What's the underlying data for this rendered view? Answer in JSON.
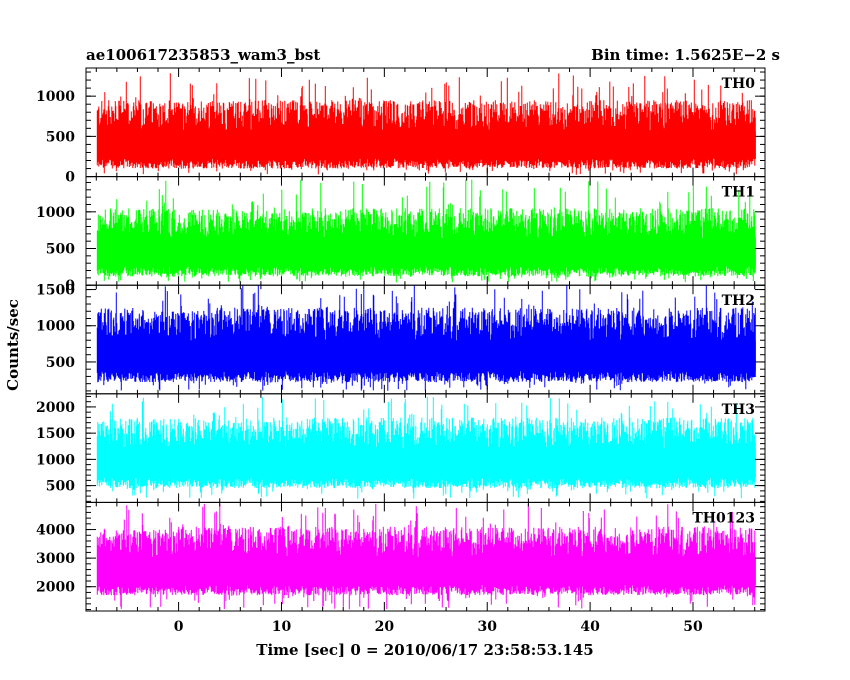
{
  "header": {
    "title": "ae100617235853_wam3_bst",
    "bin_time": "Bin time: 1.5625E−2 s"
  },
  "chart_data": {
    "type": "line",
    "xlabel": "Time [sec] 0 = 2010/06/17 23:58:53.145",
    "ylabel": "Counts/sec",
    "xlim": [
      -9,
      57
    ],
    "data_x_range": [
      -7.9,
      56.1
    ],
    "xticks_major": [
      0,
      10,
      20,
      30,
      40,
      50
    ],
    "xtick_labels": [
      "0",
      "10",
      "20",
      "30",
      "40",
      "50"
    ],
    "grid": false,
    "panels": [
      {
        "name": "TH0",
        "color": "#ff0000",
        "ylim": [
          0,
          1350
        ],
        "yticks": [
          0,
          500,
          1000
        ],
        "ytick_labels": [
          "0",
          "500",
          "1000"
        ],
        "baseline": 500,
        "typical_low": 100,
        "typical_high": 950,
        "peak_max": 1300,
        "trough_min": 20
      },
      {
        "name": "TH1",
        "color": "#00ff00",
        "ylim": [
          0,
          1480
        ],
        "yticks": [
          0,
          500,
          1000
        ],
        "ytick_labels": [
          "0",
          "500",
          "1000"
        ],
        "baseline": 480,
        "typical_low": 120,
        "typical_high": 1050,
        "peak_max": 1450,
        "trough_min": 40
      },
      {
        "name": "TH2",
        "color": "#0000ff",
        "ylim": [
          60,
          1560
        ],
        "yticks": [
          500,
          1000,
          1500
        ],
        "ytick_labels": [
          "500",
          "1000",
          "1500"
        ],
        "baseline": 620,
        "typical_low": 220,
        "typical_high": 1250,
        "peak_max": 1560,
        "trough_min": 100
      },
      {
        "name": "TH3",
        "color": "#00ffff",
        "ylim": [
          180,
          2250
        ],
        "yticks": [
          500,
          1000,
          1500,
          2000
        ],
        "ytick_labels": [
          "500",
          "1000",
          "1500",
          "2000"
        ],
        "baseline": 1050,
        "typical_low": 450,
        "typical_high": 1800,
        "peak_max": 2200,
        "trough_min": 250
      },
      {
        "name": "TH0123",
        "color": "#ff00ff",
        "ylim": [
          1150,
          4950
        ],
        "yticks": [
          2000,
          3000,
          4000
        ],
        "ytick_labels": [
          "2000",
          "3000",
          "4000"
        ],
        "baseline": 2700,
        "typical_low": 1700,
        "typical_high": 4100,
        "peak_max": 4900,
        "trough_min": 1200
      }
    ]
  }
}
